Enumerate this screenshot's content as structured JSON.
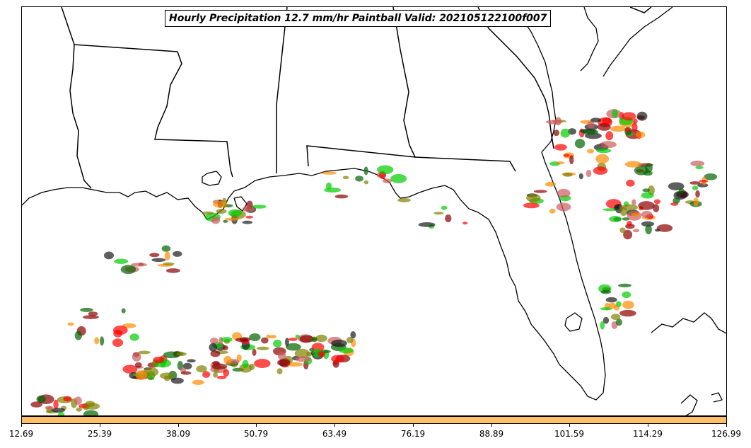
{
  "title": "Hourly Precipitation 12.7 mm/hr Paintball Valid: 202105122100f007",
  "colorbar": {
    "ticks": [
      "12.69",
      "25.39",
      "38.09",
      "50.79",
      "63.49",
      "76.19",
      "88.89",
      "101.59",
      "114.29",
      "126.99"
    ],
    "fill_color": "#fdbf66"
  },
  "map": {
    "region": "US Gulf Coast and Florida",
    "features": [
      "coastlines",
      "state-borders",
      "precipitation-paintballs"
    ],
    "member_colors": [
      "#8b0000",
      "#ff0000",
      "#ff8c00",
      "#808000",
      "#00cc00",
      "#006400",
      "#cd5c5c",
      "#1a1a1a"
    ]
  }
}
